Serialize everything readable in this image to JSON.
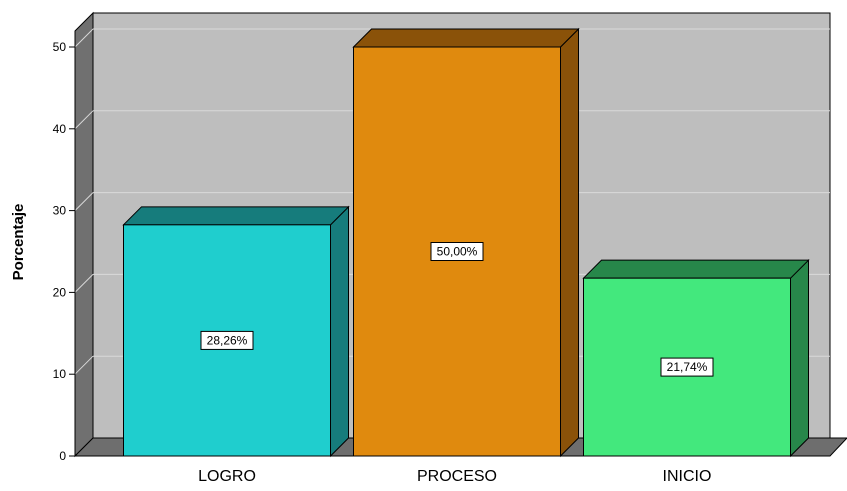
{
  "chart_data": {
    "type": "bar",
    "categories": [
      "LOGRO",
      "PROCESO",
      "INICIO"
    ],
    "values": [
      28.26,
      50.0,
      21.74
    ],
    "data_labels": [
      "28,26%",
      "50,00%",
      "21,74%"
    ],
    "title": "",
    "xlabel": "",
    "ylabel": "Porcentaje",
    "ylim": [
      0,
      53
    ],
    "yticks": [
      0,
      10,
      20,
      30,
      40,
      50
    ],
    "ytick_labels": [
      "0",
      "10",
      "20",
      "30",
      "40",
      "50"
    ],
    "grid": true,
    "style": "3d",
    "colors": {
      "bars": [
        "#1fcece",
        "#e08a0e",
        "#43e87d"
      ],
      "bar_tops": [
        "#167c7c",
        "#8a5209",
        "#27874a"
      ],
      "bar_sides": [
        "#167c7c",
        "#8a5209",
        "#27874a"
      ],
      "wall": "#bebebe",
      "floor": "#6e6e6e",
      "left_wall": "#707070",
      "gridline": "#d9d9d9"
    }
  }
}
